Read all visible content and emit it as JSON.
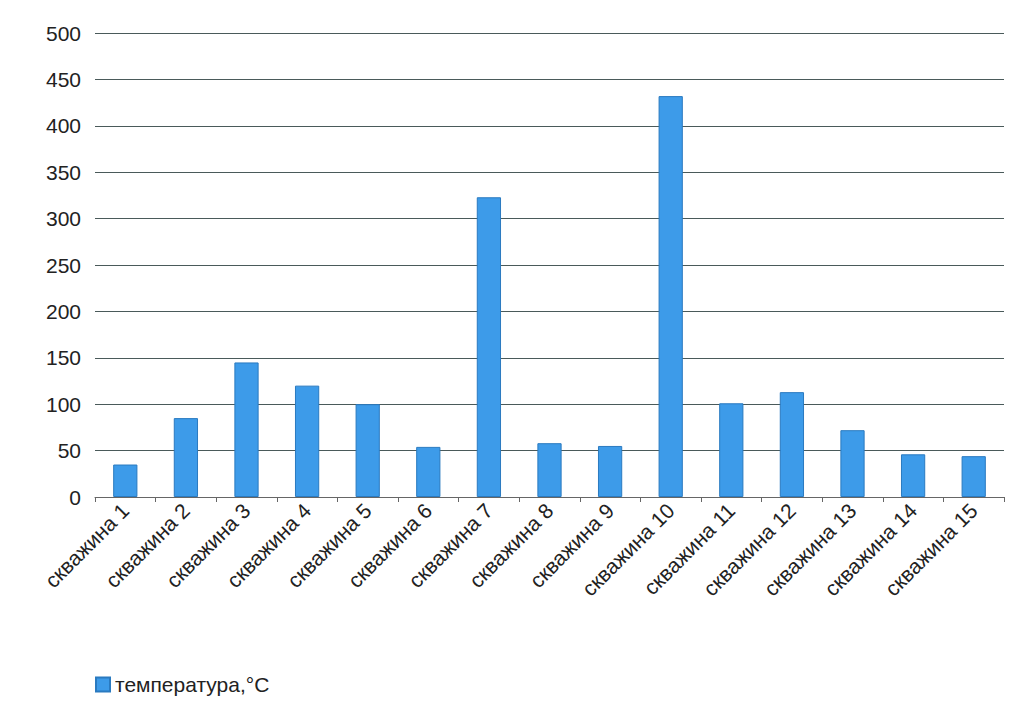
{
  "chart_data": {
    "type": "bar",
    "categories": [
      "скважина 1",
      "скважина 2",
      "скважина 3",
      "скважина 4",
      "скважина 5",
      "скважина 6",
      "скважина 7",
      "скважина 8",
      "скважина 9",
      "скважина 10",
      "скважина 11",
      "скважина 12",
      "скважина 13",
      "скважина 14",
      "скважина 15"
    ],
    "series": [
      {
        "name": "температура,°C",
        "color": "#3d9be9",
        "values": [
          35,
          85,
          145,
          120,
          100,
          54,
          323,
          58,
          55,
          432,
          101,
          113,
          72,
          46,
          44
        ]
      }
    ],
    "ylim": [
      0,
      500
    ],
    "yticks": [
      0,
      50,
      100,
      150,
      200,
      250,
      300,
      350,
      400,
      450,
      500
    ],
    "grid": true,
    "legend": "bottom-left"
  }
}
